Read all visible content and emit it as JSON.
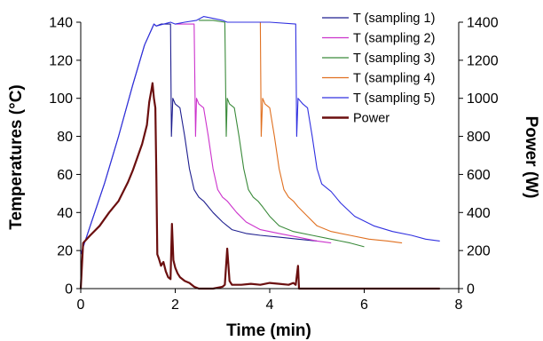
{
  "chart_data": {
    "type": "line",
    "xlabel": "Time (min)",
    "ylabel_left": "Temperatures (°C)",
    "ylabel_right": "Power (W)",
    "xlim": [
      0,
      8
    ],
    "ylim_left": [
      0,
      140
    ],
    "ylim_right": [
      0,
      1400
    ],
    "xticks": [
      "0",
      "2",
      "4",
      "6",
      "8"
    ],
    "yticks_left": [
      "0",
      "20",
      "40",
      "60",
      "80",
      "100",
      "120",
      "140"
    ],
    "yticks_right": [
      "0",
      "200",
      "400",
      "600",
      "800",
      "1000",
      "1200",
      "1400"
    ],
    "grid": false,
    "legend_position": "top-right",
    "series": [
      {
        "name": "T (sampling 1)",
        "axis": "left",
        "color": "#1f1f8f",
        "x": [
          0,
          0.2,
          0.5,
          0.8,
          1.1,
          1.35,
          1.55,
          1.6,
          1.7,
          1.75,
          1.8,
          1.9,
          1.92,
          1.95,
          2.0,
          2.1,
          2.2,
          2.3,
          2.4,
          2.5,
          2.6,
          2.7,
          2.8,
          3.0,
          3.2,
          3.5,
          3.8,
          4.2,
          4.6,
          5.0
        ],
        "y": [
          18,
          33,
          55,
          80,
          107,
          128,
          139,
          138,
          139,
          139,
          139,
          139,
          80,
          100,
          97,
          95,
          80,
          63,
          52,
          48,
          46,
          43,
          40,
          35,
          31,
          29,
          28,
          27,
          26,
          25
        ]
      },
      {
        "name": "T (sampling 2)",
        "axis": "left",
        "color": "#cc33cc",
        "x": [
          2.0,
          2.2,
          2.4,
          2.43,
          2.45,
          2.5,
          2.6,
          2.7,
          2.8,
          2.9,
          3.0,
          3.1,
          3.2,
          3.3,
          3.5,
          3.8,
          4.2,
          4.6,
          5.0,
          5.3
        ],
        "y": [
          139,
          139,
          139,
          80,
          100,
          97,
          95,
          80,
          63,
          52,
          48,
          46,
          43,
          40,
          35,
          31,
          29,
          27,
          25,
          24
        ]
      },
      {
        "name": "T (sampling 3)",
        "axis": "left",
        "color": "#3a8a3a",
        "x": [
          2.5,
          2.8,
          3.05,
          3.08,
          3.1,
          3.15,
          3.25,
          3.35,
          3.45,
          3.55,
          3.65,
          3.75,
          3.85,
          4.0,
          4.2,
          4.5,
          4.9,
          5.3,
          5.7,
          6.0
        ],
        "y": [
          141,
          141,
          140,
          80,
          100,
          97,
          95,
          80,
          63,
          52,
          48,
          46,
          43,
          38,
          33,
          30,
          28,
          26,
          24,
          22
        ]
      },
      {
        "name": "T (sampling 4)",
        "axis": "left",
        "color": "#e07020",
        "x": [
          3.2,
          3.5,
          3.8,
          3.82,
          3.85,
          3.9,
          4.0,
          4.1,
          4.2,
          4.3,
          4.4,
          4.5,
          4.6,
          4.8,
          5.0,
          5.3,
          5.7,
          6.1,
          6.5,
          6.8
        ],
        "y": [
          140,
          140,
          140,
          80,
          100,
          97,
          95,
          80,
          63,
          52,
          48,
          46,
          43,
          38,
          33,
          30,
          28,
          26,
          25,
          24
        ]
      },
      {
        "name": "T (sampling 5)",
        "axis": "left",
        "color": "#3030e0",
        "x": [
          0,
          0.2,
          0.5,
          0.8,
          1.1,
          1.35,
          1.55,
          1.6,
          1.9,
          2.0,
          2.2,
          2.45,
          2.6,
          2.8,
          3.0,
          3.1,
          3.5,
          4.0,
          4.55,
          4.57,
          4.6,
          4.7,
          4.8,
          4.9,
          5.0,
          5.1,
          5.2,
          5.3,
          5.5,
          5.8,
          6.2,
          6.6,
          7.0,
          7.3,
          7.6
        ],
        "y": [
          18,
          33,
          55,
          80,
          107,
          128,
          139,
          138,
          140,
          139,
          140,
          141,
          143,
          142,
          141,
          140,
          140,
          140,
          139,
          80,
          100,
          97,
          95,
          80,
          63,
          55,
          53,
          51,
          45,
          38,
          33,
          30,
          28,
          26,
          25
        ]
      },
      {
        "name": "Power",
        "axis": "right",
        "color": "#6b0f0f",
        "x": [
          0,
          0.05,
          0.2,
          0.4,
          0.6,
          0.8,
          1.0,
          1.1,
          1.2,
          1.3,
          1.4,
          1.45,
          1.5,
          1.52,
          1.55,
          1.58,
          1.6,
          1.62,
          1.65,
          1.7,
          1.75,
          1.8,
          1.85,
          1.9,
          1.93,
          1.96,
          2.0,
          2.05,
          2.1,
          2.2,
          2.3,
          2.4,
          2.5,
          2.6,
          2.8,
          3.0,
          3.05,
          3.1,
          3.15,
          3.2,
          3.4,
          3.6,
          3.8,
          4.0,
          4.2,
          4.4,
          4.5,
          4.55,
          4.6,
          4.62,
          5.0,
          6.0,
          7.0,
          7.6
        ],
        "y": [
          0,
          240,
          280,
          330,
          400,
          460,
          560,
          620,
          690,
          760,
          860,
          980,
          1050,
          1080,
          1000,
          950,
          600,
          180,
          160,
          120,
          140,
          90,
          60,
          50,
          340,
          150,
          110,
          80,
          60,
          40,
          30,
          10,
          0,
          0,
          0,
          10,
          20,
          210,
          40,
          20,
          20,
          25,
          20,
          30,
          25,
          20,
          30,
          20,
          120,
          0,
          0,
          0,
          0,
          0
        ]
      }
    ]
  }
}
